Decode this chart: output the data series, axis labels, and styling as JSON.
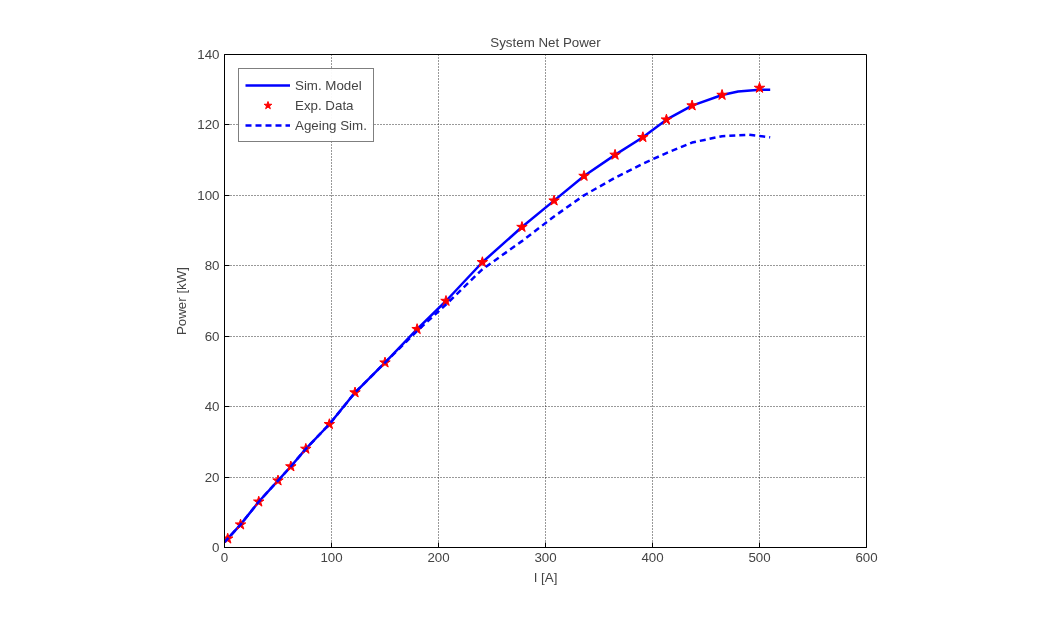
{
  "chart_data": {
    "type": "line",
    "title": "System Net Power",
    "xlabel": "I [A]",
    "ylabel": "Power [kW]",
    "xlim": [
      0,
      600
    ],
    "xticks": [
      0,
      100,
      200,
      300,
      400,
      500,
      600
    ],
    "ylim": [
      0,
      140
    ],
    "yticks": [
      0,
      20,
      40,
      60,
      80,
      100,
      120,
      140
    ],
    "grid": true,
    "legend": "top left",
    "series": [
      {
        "name": "Sim. Model",
        "line_style": "solid",
        "color": "#0000ff",
        "x": [
          0,
          3,
          15,
          32,
          50,
          62,
          76,
          98,
          122,
          150,
          180,
          207,
          241,
          278,
          308,
          336,
          365,
          391,
          413,
          437,
          465,
          480,
          500,
          510
        ],
        "values": [
          1.5,
          2.5,
          6.5,
          13,
          19,
          23,
          28,
          35,
          44,
          52.5,
          62,
          70,
          81,
          91,
          98.5,
          105.5,
          111.5,
          116.5,
          121.5,
          125.5,
          128.5,
          129.5,
          130,
          130
        ]
      },
      {
        "name": "Exp. Data",
        "type": "scatter",
        "marker": "star",
        "color": "#ff0000",
        "x": [
          3,
          15,
          32,
          50,
          62,
          76,
          98,
          122,
          150,
          180,
          207,
          241,
          278,
          308,
          336,
          365,
          391,
          413,
          437,
          465,
          500
        ],
        "values": [
          2.5,
          6.5,
          13,
          19,
          23,
          28,
          35,
          44,
          52.5,
          62,
          70,
          81,
          91,
          98.5,
          105.5,
          111.5,
          116.5,
          121.5,
          125.5,
          128.5,
          130.5
        ]
      },
      {
        "name": "Ageing Sim.",
        "line_style": "dashed",
        "color": "#0000ff",
        "x": [
          0,
          3,
          15,
          32,
          50,
          62,
          76,
          98,
          122,
          150,
          180,
          207,
          241,
          278,
          308,
          336,
          365,
          391,
          413,
          437,
          465,
          490,
          510
        ],
        "values": [
          1.5,
          2.5,
          6.5,
          13,
          19,
          23,
          28,
          35,
          44,
          52.5,
          61.5,
          69,
          79,
          87,
          94,
          100,
          105,
          109,
          112,
          115,
          116.8,
          117.2,
          116.5
        ]
      }
    ]
  }
}
